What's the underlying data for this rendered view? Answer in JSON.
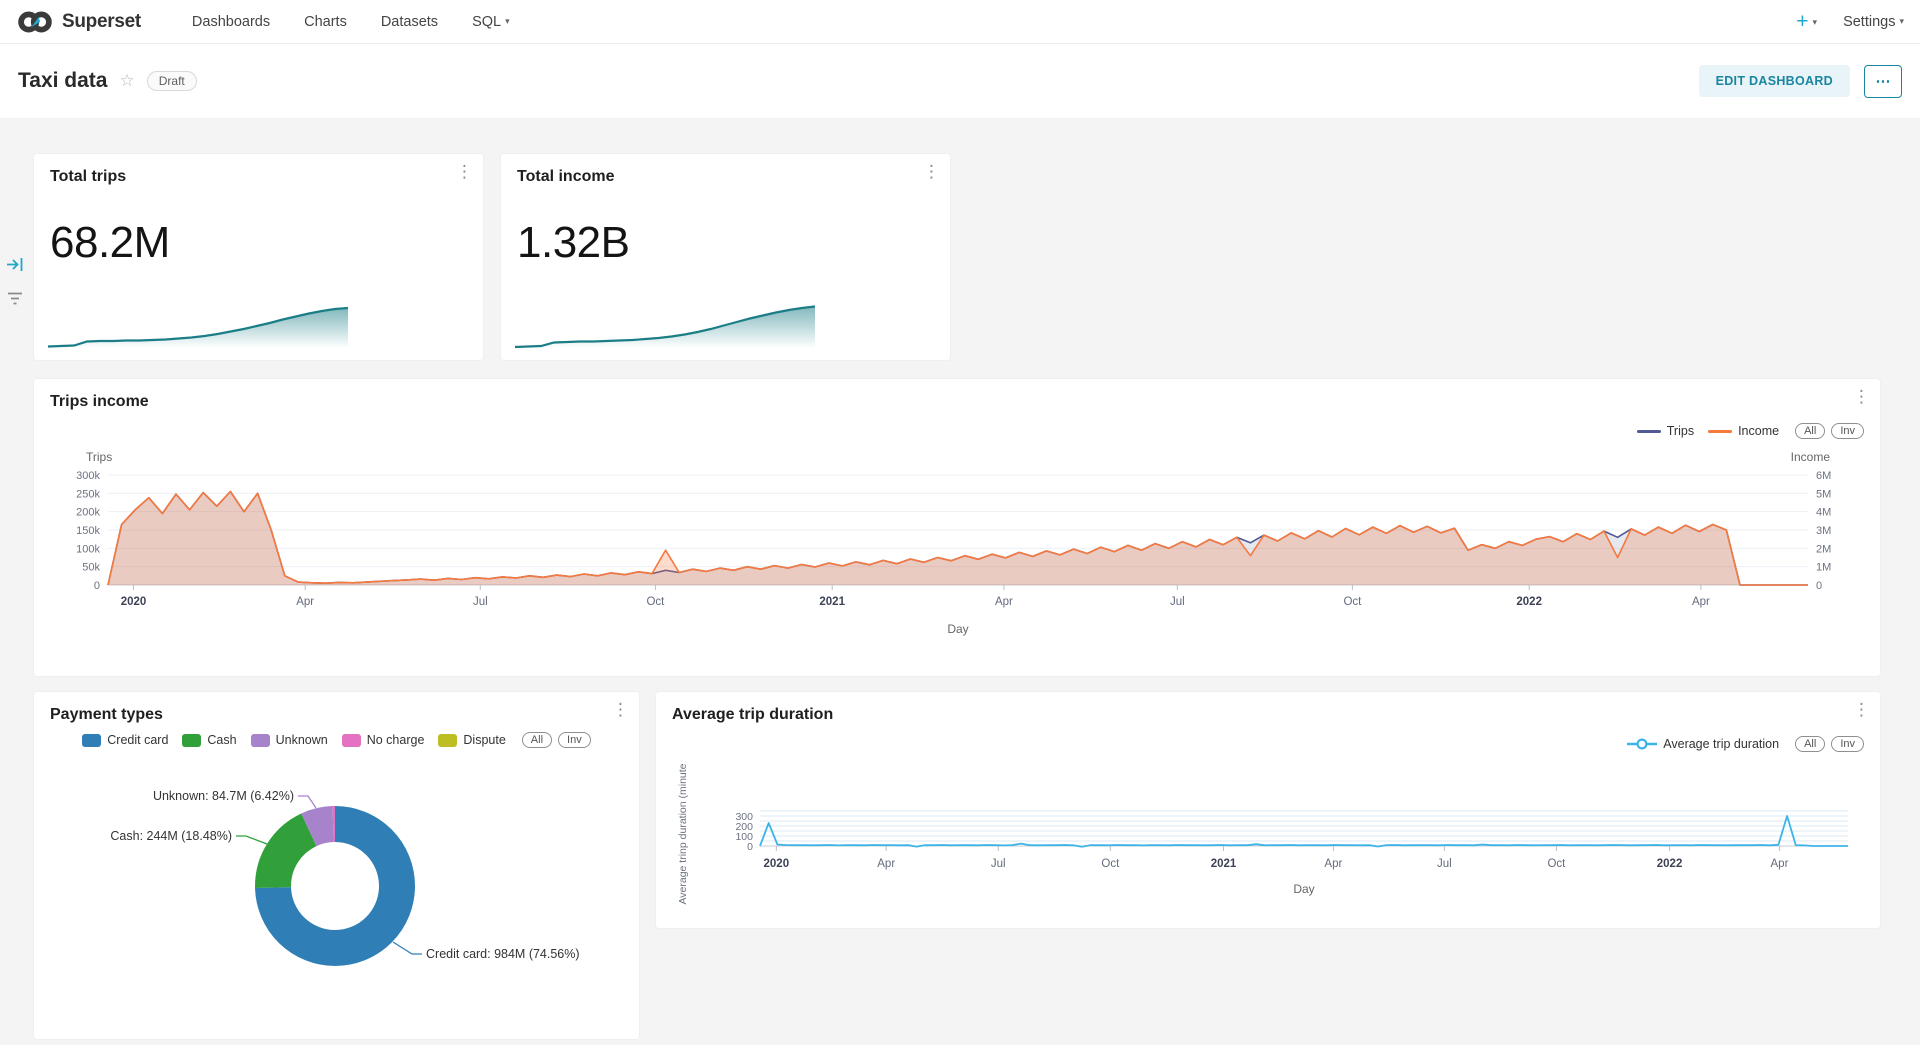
{
  "brand": {
    "name": "Superset",
    "accent": "#20a7c9"
  },
  "nav": {
    "items": [
      {
        "label": "Dashboards",
        "has_caret": false
      },
      {
        "label": "Charts",
        "has_caret": false
      },
      {
        "label": "Datasets",
        "has_caret": false
      },
      {
        "label": "SQL",
        "has_caret": true
      }
    ],
    "plus_label": "+",
    "settings_label": "Settings"
  },
  "header": {
    "title": "Taxi data",
    "status_badge": "Draft",
    "edit_button": "EDIT DASHBOARD",
    "more_button": "⋯"
  },
  "kpi": {
    "total_trips": {
      "title": "Total trips",
      "value": "68.2M",
      "spark": [
        3,
        4,
        5,
        13,
        14,
        14,
        15,
        15,
        16,
        17,
        19,
        21,
        24,
        28,
        33,
        38,
        44,
        50,
        57,
        63,
        69,
        74,
        78,
        80
      ]
    },
    "total_income": {
      "title": "Total income",
      "value": "1.32B",
      "spark": [
        2,
        3,
        4,
        11,
        12,
        13,
        13,
        14,
        15,
        16,
        18,
        20,
        23,
        27,
        32,
        38,
        45,
        52,
        59,
        65,
        71,
        76,
        80,
        83
      ]
    },
    "spark_color": "#1b7e87"
  },
  "chart_data": [
    {
      "id": "trips_income",
      "type": "area",
      "title": "Trips income",
      "xlabel": "Day",
      "grid": true,
      "legend_position": "top-right",
      "pills": [
        "All",
        "Inv"
      ],
      "x_ticks": [
        {
          "label": "2020",
          "bold": true,
          "f": 0.015
        },
        {
          "label": "Apr",
          "bold": false,
          "f": 0.116
        },
        {
          "label": "Jul",
          "bold": false,
          "f": 0.219
        },
        {
          "label": "Oct",
          "bold": false,
          "f": 0.322
        },
        {
          "label": "2021",
          "bold": true,
          "f": 0.426
        },
        {
          "label": "Apr",
          "bold": false,
          "f": 0.527
        },
        {
          "label": "Jul",
          "bold": false,
          "f": 0.629
        },
        {
          "label": "Oct",
          "bold": false,
          "f": 0.732
        },
        {
          "label": "2022",
          "bold": true,
          "f": 0.836
        },
        {
          "label": "Apr",
          "bold": false,
          "f": 0.937
        }
      ],
      "y_left": {
        "name": "Trips",
        "ticks": [
          "300k",
          "250k",
          "200k",
          "150k",
          "100k",
          "50k",
          "0"
        ],
        "max": 300
      },
      "y_right": {
        "name": "Income",
        "ticks": [
          "6M",
          "5M",
          "4M",
          "3M",
          "2M",
          "1M",
          "0"
        ],
        "max": 6
      },
      "series": [
        {
          "name": "Trips",
          "color": "#4f5a94",
          "unit": "thousand trips per day",
          "values": [
            0,
            165,
            205,
            238,
            195,
            248,
            205,
            252,
            215,
            255,
            200,
            250,
            150,
            25,
            8,
            6,
            5,
            7,
            6,
            8,
            10,
            12,
            14,
            16,
            13,
            18,
            15,
            20,
            17,
            22,
            19,
            25,
            21,
            27,
            23,
            30,
            25,
            33,
            28,
            36,
            31,
            40,
            34,
            43,
            37,
            46,
            40,
            50,
            43,
            53,
            46,
            56,
            49,
            60,
            52,
            63,
            55,
            67,
            58,
            71,
            62,
            75,
            66,
            80,
            70,
            84,
            74,
            89,
            78,
            93,
            82,
            98,
            86,
            103,
            91,
            108,
            95,
            113,
            100,
            118,
            104,
            124,
            110,
            130,
            115,
            136,
            120,
            142,
            126,
            148,
            131,
            154,
            137,
            158,
            141,
            162,
            144,
            160,
            142,
            155,
            95,
            110,
            100,
            118,
            108,
            125,
            132,
            118,
            140,
            124,
            147,
            130,
            153,
            136,
            158,
            141,
            163,
            146,
            165,
            150,
            0,
            0,
            0,
            0,
            0,
            0
          ]
        },
        {
          "name": "Income",
          "color": "#f6793d",
          "unit": "million per day",
          "values": [
            0,
            3.3,
            4.1,
            4.76,
            3.9,
            4.96,
            4.1,
            5.04,
            4.3,
            5.1,
            4.0,
            5.0,
            3.0,
            0.5,
            0.16,
            0.12,
            0.1,
            0.14,
            0.12,
            0.16,
            0.2,
            0.24,
            0.28,
            0.32,
            0.26,
            0.36,
            0.3,
            0.4,
            0.34,
            0.44,
            0.38,
            0.5,
            0.42,
            0.54,
            0.46,
            0.6,
            0.5,
            0.66,
            0.56,
            0.72,
            0.62,
            1.9,
            0.68,
            0.86,
            0.74,
            0.92,
            0.8,
            1.0,
            0.86,
            1.06,
            0.92,
            1.12,
            0.98,
            1.2,
            1.04,
            1.26,
            1.1,
            1.34,
            1.16,
            1.42,
            1.24,
            1.5,
            1.32,
            1.6,
            1.4,
            1.68,
            1.48,
            1.78,
            1.56,
            1.86,
            1.64,
            1.96,
            1.72,
            2.06,
            1.82,
            2.16,
            1.9,
            2.26,
            2.0,
            2.36,
            2.08,
            2.48,
            2.2,
            2.6,
            1.6,
            2.72,
            2.4,
            2.84,
            2.52,
            2.96,
            2.62,
            3.08,
            2.74,
            3.16,
            2.82,
            3.24,
            2.88,
            3.2,
            2.84,
            3.1,
            1.9,
            2.2,
            2.0,
            2.36,
            2.16,
            2.5,
            2.64,
            2.36,
            2.8,
            2.48,
            2.94,
            1.5,
            3.06,
            2.72,
            3.16,
            2.82,
            3.26,
            2.92,
            3.3,
            3.0,
            0,
            0,
            0,
            0,
            0,
            0
          ]
        }
      ]
    },
    {
      "id": "payment_types",
      "type": "pie",
      "title": "Payment types",
      "pills": [
        "All",
        "Inv"
      ],
      "slices": [
        {
          "label": "Credit card",
          "value": "984M",
          "pct": 74.56,
          "color": "#2f7fb6"
        },
        {
          "label": "Cash",
          "value": "244M",
          "pct": 18.48,
          "color": "#31a03a"
        },
        {
          "label": "Unknown",
          "value": "84.7M",
          "pct": 6.42,
          "color": "#a783cc"
        },
        {
          "label": "No charge",
          "value": "",
          "pct": 0.5,
          "color": "#e571c2"
        },
        {
          "label": "Dispute",
          "value": "",
          "pct": 0.04,
          "color": "#bdbe23"
        }
      ],
      "callouts": {
        "unknown": "Unknown: 84.7M (6.42%)",
        "cash": "Cash: 244M (18.48%)",
        "credit": "Credit card: 984M (74.56%)"
      }
    },
    {
      "id": "avg_trip_duration",
      "type": "line",
      "title": "Average trip duration",
      "xlabel": "Day",
      "ylabel": "Average trinp duration (minute",
      "series_name": "Average trip duration",
      "color": "#3cb4e7",
      "pills": [
        "All",
        "Inv"
      ],
      "y_ticks": [
        0,
        100,
        200,
        300
      ],
      "x_ticks": [
        {
          "label": "2020",
          "bold": true,
          "f": 0.015
        },
        {
          "label": "Apr",
          "bold": false,
          "f": 0.116
        },
        {
          "label": "Jul",
          "bold": false,
          "f": 0.219
        },
        {
          "label": "Oct",
          "bold": false,
          "f": 0.322
        },
        {
          "label": "2021",
          "bold": true,
          "f": 0.426
        },
        {
          "label": "Apr",
          "bold": false,
          "f": 0.527
        },
        {
          "label": "Jul",
          "bold": false,
          "f": 0.629
        },
        {
          "label": "Oct",
          "bold": false,
          "f": 0.732
        },
        {
          "label": "2022",
          "bold": true,
          "f": 0.836
        },
        {
          "label": "Apr",
          "bold": false,
          "f": 0.937
        }
      ],
      "values": [
        0,
        230,
        15,
        10,
        8,
        9,
        7,
        8,
        10,
        6,
        9,
        8,
        7,
        10,
        8,
        9,
        7,
        8,
        -6,
        9,
        8,
        10,
        7,
        9,
        8,
        7,
        10,
        8,
        6,
        9,
        24,
        8,
        7,
        9,
        8,
        10,
        7,
        -8,
        9,
        8,
        7,
        10,
        8,
        9,
        6,
        8,
        9,
        7,
        10,
        8,
        9,
        7,
        8,
        10,
        7,
        9,
        8,
        18,
        7,
        9,
        8,
        10,
        7,
        9,
        8,
        7,
        10,
        8,
        9,
        7,
        8,
        -5,
        9,
        10,
        7,
        8,
        9,
        8,
        7,
        10,
        8,
        9,
        7,
        15,
        8,
        9,
        7,
        10,
        8,
        7,
        9,
        8,
        10,
        7,
        8,
        9,
        7,
        8,
        10,
        9,
        7,
        8,
        9,
        10,
        7,
        8,
        9,
        7,
        10,
        8,
        9,
        7,
        8,
        9,
        8,
        10,
        7,
        12,
        300,
        8,
        6,
        0,
        0,
        0,
        0,
        0
      ]
    }
  ]
}
